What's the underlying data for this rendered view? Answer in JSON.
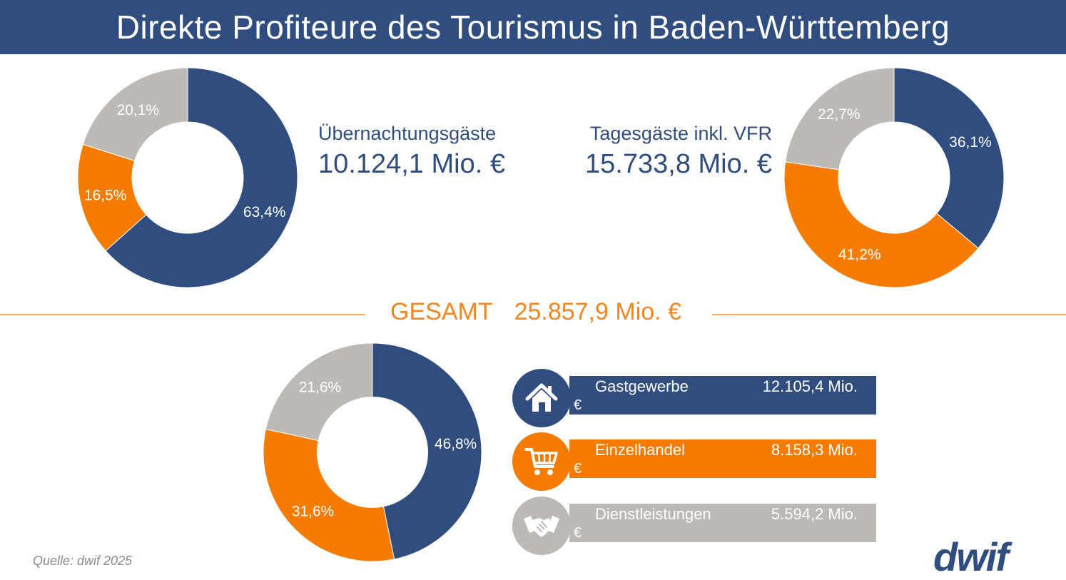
{
  "title": "Direkte Profiteure des Tourismus in Baden-Württemberg",
  "colors": {
    "navy": "#304d80",
    "orange": "#f57c00",
    "gray": "#bdb9b4",
    "header": "#304d80"
  },
  "overnight": {
    "label": "Übernachtungsgäste",
    "value": "10.124,1 Mio. €"
  },
  "daytrip": {
    "label": "Tagesgäste inkl. VFR",
    "value": "15.733,8 Mio. €"
  },
  "total": {
    "label": "GESAMT",
    "value": "25.857,9 Mio. €"
  },
  "categories": [
    {
      "name": "Gastgewerbe",
      "amount": "12.105,4 Mio.",
      "currency": "€",
      "icon": "house-icon"
    },
    {
      "name": "Einzelhandel",
      "amount": "8.158,3 Mio.",
      "currency": "€",
      "icon": "shopping-cart-icon"
    },
    {
      "name": "Dienstleistungen",
      "amount": "5.594,2 Mio.",
      "currency": "€",
      "icon": "handshake-icon"
    }
  ],
  "source": "Quelle: dwif 2025",
  "logo": "dwif",
  "chart_data": [
    {
      "type": "pie",
      "donut": true,
      "categories": [
        "Gastgewerbe",
        "Einzelhandel",
        "Dienstleistungen"
      ],
      "values": [
        63.4,
        16.5,
        20.1
      ],
      "labels": [
        "63,4%",
        "16,5%",
        "20,1%"
      ],
      "colors": [
        "#304d80",
        "#f57c00",
        "#bdb9b4"
      ]
    },
    {
      "type": "pie",
      "donut": true,
      "categories": [
        "Gastgewerbe",
        "Einzelhandel",
        "Dienstleistungen"
      ],
      "values": [
        36.1,
        41.2,
        22.7
      ],
      "labels": [
        "36,1%",
        "41,2%",
        "22,7%"
      ],
      "colors": [
        "#304d80",
        "#f57c00",
        "#bdb9b4"
      ]
    },
    {
      "type": "pie",
      "donut": true,
      "categories": [
        "Gastgewerbe",
        "Einzelhandel",
        "Dienstleistungen"
      ],
      "values": [
        46.8,
        31.6,
        21.6
      ],
      "labels": [
        "46,8%",
        "31,6%",
        "21,6%"
      ],
      "colors": [
        "#304d80",
        "#f57c00",
        "#bdb9b4"
      ]
    }
  ]
}
